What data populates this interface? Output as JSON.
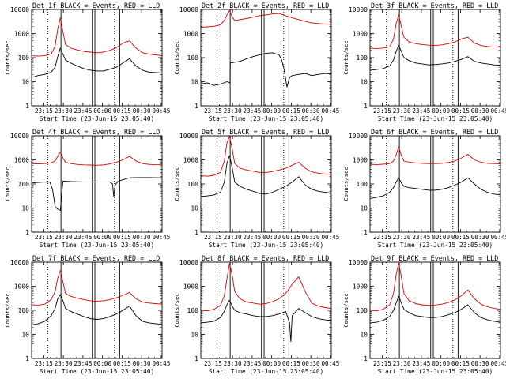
{
  "figure": {
    "rows": 3,
    "cols": 3,
    "ylabel": "Counts/sec",
    "xlabel": "Start Time (23-Jun-15 23:05:40)",
    "yticks": [
      "1",
      "10",
      "100",
      "1000",
      "10000"
    ],
    "xticks": [
      "23:15",
      "23:30",
      "23:45",
      "00:00",
      "00:15",
      "00:30",
      "00:45"
    ],
    "colors": {
      "events": "#000000",
      "lld": "#e00000",
      "axes": "#000000"
    },
    "solid_markers_min": [
      22.5,
      46.5,
      48.5,
      67.5
    ],
    "dotted_markers_min": [
      12.5,
      63.5
    ],
    "x_range_min": [
      0,
      100
    ],
    "y_range_log10": [
      0,
      4
    ]
  },
  "chart_data": [
    {
      "type": "line",
      "title": "Det 1f BLACK = Events, RED = LLD",
      "x_units": "minutes since 23:05:40",
      "y_scale": "log",
      "ylim": [
        1,
        10000
      ],
      "series": [
        {
          "name": "Events",
          "color": "#000000",
          "x": [
            0,
            5,
            10,
            15,
            18,
            20,
            22,
            24,
            26,
            30,
            35,
            40,
            45,
            50,
            55,
            60,
            65,
            70,
            75,
            80,
            85,
            90,
            95,
            100
          ],
          "y": [
            15,
            18,
            20,
            25,
            40,
            110,
            250,
            140,
            80,
            60,
            45,
            35,
            30,
            28,
            28,
            33,
            40,
            60,
            90,
            45,
            30,
            25,
            24,
            23
          ]
        },
        {
          "name": "LLD",
          "color": "#e00000",
          "x": [
            0,
            5,
            10,
            15,
            18,
            20,
            22,
            24,
            26,
            30,
            35,
            40,
            45,
            50,
            55,
            60,
            65,
            70,
            75,
            80,
            85,
            90,
            95,
            100
          ],
          "y": [
            120,
            115,
            120,
            140,
            300,
            1500,
            4500,
            1200,
            350,
            250,
            210,
            180,
            170,
            160,
            170,
            200,
            260,
            400,
            500,
            250,
            160,
            140,
            130,
            120
          ]
        }
      ]
    },
    {
      "type": "line",
      "title": "Det 2f BLACK = Events, RED = LLD",
      "x_units": "minutes since 23:05:40",
      "y_scale": "log",
      "ylim": [
        1,
        10000
      ],
      "series": [
        {
          "name": "Events",
          "color": "#000000",
          "x": [
            0,
            5,
            10,
            15,
            20,
            22.4,
            22.6,
            30,
            35,
            40,
            45,
            50,
            55,
            60,
            62,
            64,
            66,
            68,
            70,
            75,
            80,
            85,
            90,
            95,
            100
          ],
          "y": [
            8,
            9,
            7,
            8,
            10,
            9,
            60,
            70,
            90,
            110,
            130,
            150,
            160,
            130,
            80,
            30,
            6,
            15,
            18,
            20,
            22,
            18,
            20,
            22,
            21
          ]
        },
        {
          "name": "LLD",
          "color": "#e00000",
          "x": [
            0,
            5,
            10,
            15,
            18,
            20,
            22,
            24,
            26,
            30,
            35,
            40,
            45,
            50,
            55,
            60,
            65,
            70,
            75,
            80,
            85,
            90,
            95,
            100
          ],
          "y": [
            1800,
            1900,
            2000,
            2300,
            3500,
            6000,
            9000,
            5000,
            3500,
            3800,
            4200,
            4800,
            5500,
            6000,
            6500,
            6800,
            5500,
            4500,
            3800,
            3200,
            2800,
            2600,
            2500,
            2400
          ]
        }
      ]
    },
    {
      "type": "line",
      "title": "Det 3f BLACK = Events, RED = LLD",
      "x_units": "minutes since 23:05:40",
      "y_scale": "log",
      "ylim": [
        1,
        10000
      ],
      "series": [
        {
          "name": "Events",
          "color": "#000000",
          "x": [
            0,
            5,
            10,
            15,
            18,
            20,
            22,
            24,
            26,
            30,
            35,
            40,
            45,
            50,
            55,
            60,
            65,
            70,
            75,
            80,
            85,
            90,
            95,
            100
          ],
          "y": [
            30,
            32,
            35,
            45,
            80,
            180,
            320,
            180,
            100,
            75,
            60,
            55,
            50,
            52,
            55,
            60,
            70,
            85,
            110,
            70,
            60,
            55,
            50,
            48
          ]
        },
        {
          "name": "LLD",
          "color": "#e00000",
          "x": [
            0,
            5,
            10,
            15,
            18,
            20,
            22,
            24,
            26,
            30,
            35,
            40,
            45,
            50,
            55,
            60,
            65,
            70,
            75,
            80,
            85,
            90,
            95,
            100
          ],
          "y": [
            250,
            240,
            250,
            280,
            600,
            2500,
            6000,
            2000,
            700,
            450,
            380,
            350,
            330,
            320,
            340,
            380,
            450,
            600,
            700,
            400,
            320,
            290,
            280,
            270
          ]
        }
      ]
    },
    {
      "type": "line",
      "title": "Det 4f BLACK = Events, RED = LLD",
      "x_units": "minutes since 23:05:40",
      "y_scale": "log",
      "ylim": [
        1,
        10000
      ],
      "series": [
        {
          "name": "Events",
          "color": "#000000",
          "x": [
            0,
            5,
            10,
            12,
            14,
            16,
            18,
            19,
            20,
            22,
            24,
            30,
            40,
            50,
            60,
            62,
            63,
            64,
            66,
            70,
            75,
            80,
            90,
            100
          ],
          "y": [
            110,
            115,
            120,
            118,
            120,
            60,
            12,
            10,
            9,
            8,
            130,
            125,
            122,
            120,
            120,
            100,
            30,
            90,
            125,
            150,
            180,
            185,
            185,
            180
          ]
        },
        {
          "name": "LLD",
          "color": "#e00000",
          "x": [
            0,
            5,
            10,
            15,
            18,
            20,
            22,
            24,
            26,
            30,
            35,
            40,
            45,
            50,
            55,
            60,
            65,
            70,
            75,
            80,
            85,
            90,
            95,
            100
          ],
          "y": [
            700,
            680,
            700,
            750,
            900,
            1400,
            2200,
            1200,
            800,
            700,
            650,
            620,
            610,
            600,
            620,
            680,
            800,
            1000,
            1400,
            900,
            700,
            650,
            630,
            620
          ]
        }
      ]
    },
    {
      "type": "line",
      "title": "Det 5f BLACK = Events, RED = LLD",
      "x_units": "minutes since 23:05:40",
      "y_scale": "log",
      "ylim": [
        1,
        10000
      ],
      "series": [
        {
          "name": "Events",
          "color": "#000000",
          "x": [
            0,
            5,
            10,
            15,
            18,
            20,
            22,
            24,
            26,
            30,
            35,
            40,
            45,
            50,
            55,
            60,
            65,
            70,
            75,
            80,
            85,
            90,
            95,
            100
          ],
          "y": [
            30,
            32,
            35,
            45,
            120,
            700,
            1500,
            500,
            120,
            80,
            60,
            50,
            40,
            38,
            45,
            60,
            80,
            120,
            200,
            90,
            60,
            50,
            45,
            42
          ]
        },
        {
          "name": "LLD",
          "color": "#e00000",
          "x": [
            0,
            5,
            10,
            15,
            18,
            20,
            22,
            24,
            26,
            30,
            35,
            40,
            45,
            50,
            55,
            60,
            65,
            70,
            75,
            80,
            85,
            90,
            95,
            100
          ],
          "y": [
            220,
            210,
            230,
            300,
            900,
            5000,
            9500,
            3000,
            700,
            450,
            380,
            340,
            300,
            300,
            330,
            380,
            450,
            600,
            800,
            450,
            320,
            280,
            260,
            250
          ]
        }
      ]
    },
    {
      "type": "line",
      "title": "Det 6f BLACK = Events, RED = LLD",
      "x_units": "minutes since 23:05:40",
      "y_scale": "log",
      "ylim": [
        1,
        10000
      ],
      "series": [
        {
          "name": "Events",
          "color": "#000000",
          "x": [
            0,
            5,
            10,
            15,
            18,
            20,
            22,
            24,
            26,
            30,
            35,
            40,
            45,
            50,
            55,
            60,
            65,
            70,
            75,
            80,
            85,
            90,
            95,
            100
          ],
          "y": [
            25,
            28,
            32,
            45,
            70,
            120,
            180,
            110,
            80,
            70,
            65,
            60,
            55,
            55,
            60,
            70,
            90,
            120,
            180,
            100,
            60,
            45,
            38,
            35
          ]
        },
        {
          "name": "LLD",
          "color": "#e00000",
          "x": [
            0,
            5,
            10,
            15,
            18,
            20,
            22,
            24,
            26,
            30,
            35,
            40,
            45,
            50,
            55,
            60,
            65,
            70,
            75,
            80,
            85,
            90,
            95,
            100
          ],
          "y": [
            650,
            640,
            660,
            700,
            900,
            1600,
            3500,
            1500,
            900,
            800,
            750,
            720,
            700,
            700,
            720,
            780,
            900,
            1200,
            1700,
            1000,
            800,
            720,
            700,
            680
          ]
        }
      ]
    },
    {
      "type": "line",
      "title": "Det 7f BLACK = Events, RED = LLD",
      "x_units": "minutes since 23:05:40",
      "y_scale": "log",
      "ylim": [
        1,
        10000
      ],
      "series": [
        {
          "name": "Events",
          "color": "#000000",
          "x": [
            0,
            5,
            10,
            15,
            18,
            20,
            22,
            24,
            26,
            30,
            35,
            40,
            45,
            50,
            55,
            60,
            65,
            70,
            75,
            80,
            85,
            90,
            95,
            100
          ],
          "y": [
            25,
            28,
            35,
            60,
            120,
            300,
            450,
            250,
            120,
            90,
            70,
            55,
            45,
            42,
            45,
            55,
            70,
            100,
            150,
            60,
            35,
            30,
            28,
            26
          ]
        },
        {
          "name": "LLD",
          "color": "#e00000",
          "x": [
            0,
            5,
            10,
            15,
            18,
            20,
            22,
            24,
            26,
            30,
            35,
            40,
            45,
            50,
            55,
            60,
            65,
            70,
            75,
            80,
            85,
            90,
            95,
            100
          ],
          "y": [
            170,
            165,
            180,
            280,
            600,
            2200,
            4500,
            1500,
            500,
            380,
            320,
            280,
            250,
            240,
            250,
            280,
            330,
            420,
            550,
            300,
            220,
            200,
            190,
            180
          ]
        }
      ]
    },
    {
      "type": "line",
      "title": "Det 8f BLACK = Events, RED = LLD",
      "x_units": "minutes since 23:05:40",
      "y_scale": "log",
      "ylim": [
        1,
        10000
      ],
      "series": [
        {
          "name": "Events",
          "color": "#000000",
          "x": [
            0,
            5,
            10,
            15,
            18,
            20,
            22,
            24,
            26,
            30,
            35,
            40,
            45,
            50,
            55,
            60,
            65,
            68,
            69,
            70,
            75,
            80,
            85,
            90,
            95,
            100
          ],
          "y": [
            30,
            32,
            35,
            50,
            90,
            170,
            260,
            150,
            100,
            80,
            70,
            60,
            55,
            55,
            60,
            70,
            90,
            30,
            5,
            60,
            120,
            80,
            55,
            45,
            40,
            38
          ]
        },
        {
          "name": "LLD",
          "color": "#e00000",
          "x": [
            0,
            5,
            10,
            15,
            18,
            20,
            22,
            24,
            26,
            30,
            35,
            40,
            45,
            50,
            55,
            60,
            65,
            70,
            75,
            80,
            85,
            90,
            95,
            100
          ],
          "y": [
            100,
            95,
            110,
            160,
            400,
            2000,
            9000,
            3000,
            600,
            300,
            220,
            200,
            180,
            190,
            230,
            300,
            500,
            1200,
            2500,
            600,
            200,
            150,
            130,
            120
          ]
        }
      ]
    },
    {
      "type": "line",
      "title": "Det 9f BLACK = Events, RED = LLD",
      "x_units": "minutes since 23:05:40",
      "y_scale": "log",
      "ylim": [
        1,
        10000
      ],
      "series": [
        {
          "name": "Events",
          "color": "#000000",
          "x": [
            0,
            5,
            10,
            15,
            18,
            20,
            22,
            24,
            26,
            30,
            35,
            40,
            45,
            50,
            55,
            60,
            65,
            70,
            75,
            80,
            85,
            90,
            95,
            100
          ],
          "y": [
            30,
            32,
            38,
            55,
            100,
            200,
            380,
            200,
            110,
            80,
            60,
            55,
            50,
            50,
            55,
            65,
            80,
            110,
            170,
            80,
            50,
            40,
            35,
            32
          ]
        },
        {
          "name": "LLD",
          "color": "#e00000",
          "x": [
            0,
            5,
            10,
            15,
            18,
            20,
            22,
            24,
            26,
            30,
            35,
            40,
            45,
            50,
            55,
            60,
            65,
            70,
            75,
            80,
            85,
            90,
            95,
            100
          ],
          "y": [
            100,
            95,
            110,
            170,
            500,
            3000,
            9000,
            2500,
            500,
            250,
            190,
            170,
            160,
            165,
            180,
            210,
            270,
            400,
            700,
            300,
            180,
            140,
            120,
            110
          ]
        }
      ]
    }
  ]
}
